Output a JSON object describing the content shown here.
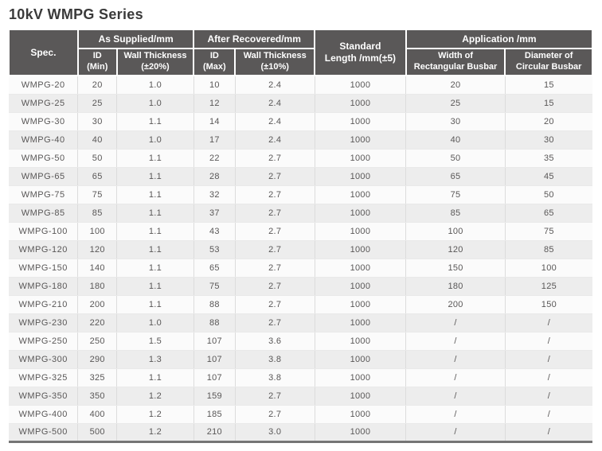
{
  "page": {
    "title": "10kV WMPG Series"
  },
  "colors": {
    "header_bg": "#5a5858",
    "header_text": "#ffffff",
    "body_text": "#595757",
    "stripe": "#ededed",
    "bottom_border": "#757575"
  },
  "table": {
    "header": {
      "spec": "Spec.",
      "as_supplied": "As Supplied/mm",
      "after_recovered": "After Recovered/mm",
      "standard_length": {
        "line1": "Standard",
        "line2": "Length /mm(±5)"
      },
      "application": "Application /mm",
      "id_min": {
        "line1": "ID",
        "line2": "(Min)"
      },
      "wall_20": {
        "line1": "Wall Thickness",
        "line2": "(±20%)"
      },
      "id_max": {
        "line1": "ID",
        "line2": "(Max)"
      },
      "wall_10": {
        "line1": "Wall Thickness",
        "line2": "(±10%)"
      },
      "width_rect": {
        "line1": "Width of",
        "line2": "Rectangular Busbar"
      },
      "dia_circ": {
        "line1": "Diameter of",
        "line2": "Circular Busbar"
      }
    },
    "rows": [
      [
        "WMPG-20",
        "20",
        "1.0",
        "10",
        "2.4",
        "1000",
        "20",
        "15"
      ],
      [
        "WMPG-25",
        "25",
        "1.0",
        "12",
        "2.4",
        "1000",
        "25",
        "15"
      ],
      [
        "WMPG-30",
        "30",
        "1.1",
        "14",
        "2.4",
        "1000",
        "30",
        "20"
      ],
      [
        "WMPG-40",
        "40",
        "1.0",
        "17",
        "2.4",
        "1000",
        "40",
        "30"
      ],
      [
        "WMPG-50",
        "50",
        "1.1",
        "22",
        "2.7",
        "1000",
        "50",
        "35"
      ],
      [
        "WMPG-65",
        "65",
        "1.1",
        "28",
        "2.7",
        "1000",
        "65",
        "45"
      ],
      [
        "WMPG-75",
        "75",
        "1.1",
        "32",
        "2.7",
        "1000",
        "75",
        "50"
      ],
      [
        "WMPG-85",
        "85",
        "1.1",
        "37",
        "2.7",
        "1000",
        "85",
        "65"
      ],
      [
        "WMPG-100",
        "100",
        "1.1",
        "43",
        "2.7",
        "1000",
        "100",
        "75"
      ],
      [
        "WMPG-120",
        "120",
        "1.1",
        "53",
        "2.7",
        "1000",
        "120",
        "85"
      ],
      [
        "WMPG-150",
        "140",
        "1.1",
        "65",
        "2.7",
        "1000",
        "150",
        "100"
      ],
      [
        "WMPG-180",
        "180",
        "1.1",
        "75",
        "2.7",
        "1000",
        "180",
        "125"
      ],
      [
        "WMPG-210",
        "200",
        "1.1",
        "88",
        "2.7",
        "1000",
        "200",
        "150"
      ],
      [
        "WMPG-230",
        "220",
        "1.0",
        "88",
        "2.7",
        "1000",
        "/",
        "/"
      ],
      [
        "WMPG-250",
        "250",
        "1.5",
        "107",
        "3.6",
        "1000",
        "/",
        "/"
      ],
      [
        "WMPG-300",
        "290",
        "1.3",
        "107",
        "3.8",
        "1000",
        "/",
        "/"
      ],
      [
        "WMPG-325",
        "325",
        "1.1",
        "107",
        "3.8",
        "1000",
        "/",
        "/"
      ],
      [
        "WMPG-350",
        "350",
        "1.2",
        "159",
        "2.7",
        "1000",
        "/",
        "/"
      ],
      [
        "WMPG-400",
        "400",
        "1.2",
        "185",
        "2.7",
        "1000",
        "/",
        "/"
      ],
      [
        "WMPG-500",
        "500",
        "1.2",
        "210",
        "3.0",
        "1000",
        "/",
        "/"
      ]
    ]
  }
}
